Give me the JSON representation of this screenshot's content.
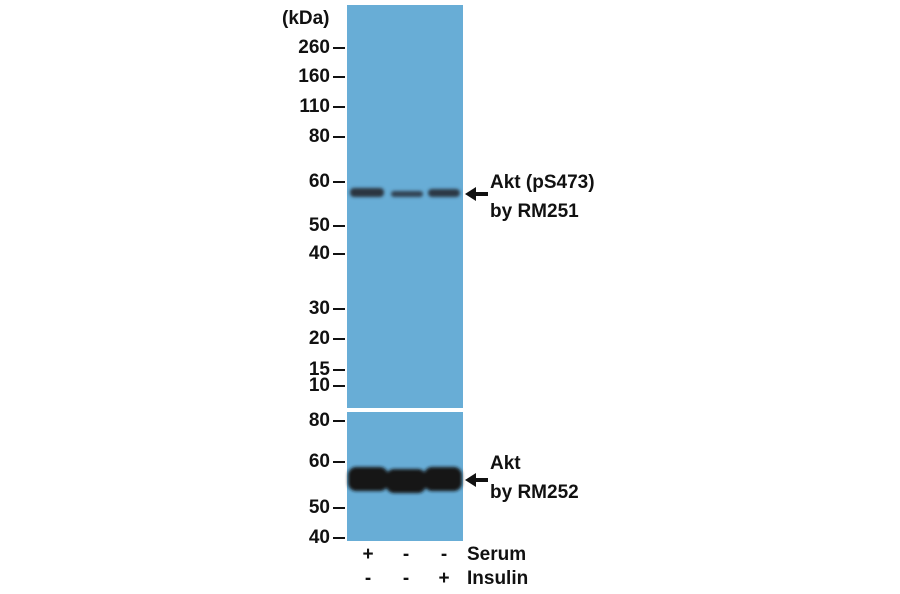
{
  "unit_label": "(kDa)",
  "top_panel": {
    "markers": [
      "260",
      "160",
      "110",
      "80",
      "60",
      "50",
      "40",
      "30",
      "20",
      "15",
      "10"
    ],
    "band_label": [
      "Akt (pS473)",
      "by RM251"
    ]
  },
  "bottom_panel": {
    "markers": [
      "80",
      "60",
      "50",
      "40"
    ],
    "band_label": [
      "Akt",
      "by RM252"
    ]
  },
  "conditions": [
    {
      "name": "Serum",
      "lanes": [
        "+",
        "-",
        "-"
      ]
    },
    {
      "name": "Insulin",
      "lanes": [
        "-",
        "-",
        "+"
      ]
    }
  ]
}
